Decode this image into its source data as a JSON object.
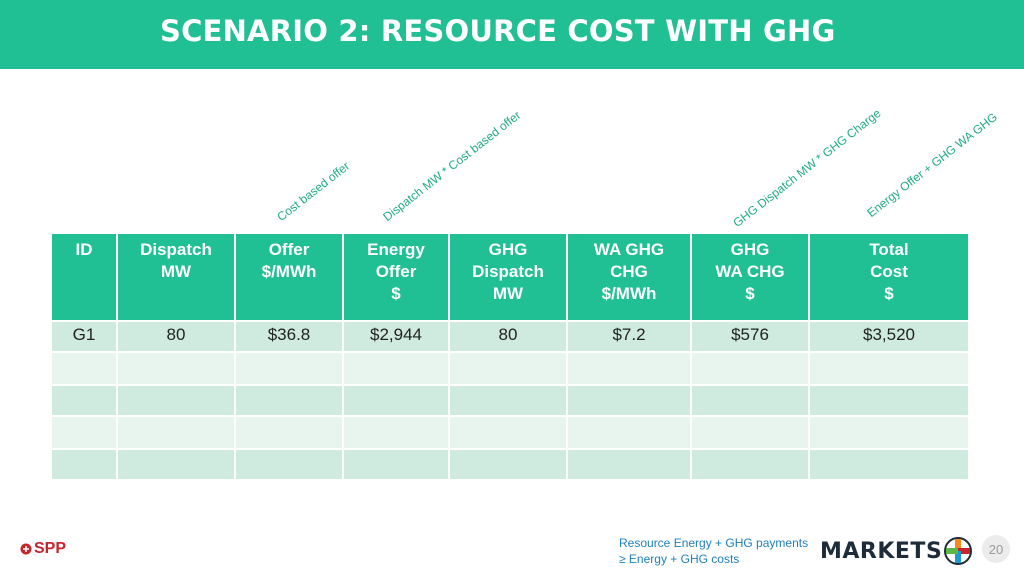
{
  "title": "SCENARIO 2:  RESOURCE COST WITH GHG",
  "annotations": {
    "offer": "Cost based offer",
    "energy_offer": "Dispatch MW * Cost based offer",
    "ghg_wa": "GHG Dispatch MW * GHG Charge",
    "total": "Energy Offer + GHG WA GHG"
  },
  "table": {
    "headers": [
      "ID",
      "Dispatch\nMW",
      "Offer\n$/MWh",
      "Energy\nOffer\n$",
      "GHG\nDispatch\nMW",
      "WA GHG\nCHG\n$/MWh",
      "GHG\nWA CHG\n$",
      "Total\nCost\n$"
    ],
    "rows": [
      [
        "G1",
        "80",
        "$36.8",
        "$2,944",
        "80",
        "$7.2",
        "$576",
        "$3,520"
      ],
      [
        "",
        "",
        "",
        "",
        "",
        "",
        "",
        ""
      ],
      [
        "",
        "",
        "",
        "",
        "",
        "",
        "",
        ""
      ],
      [
        "",
        "",
        "",
        "",
        "",
        "",
        "",
        ""
      ],
      [
        "",
        "",
        "",
        "",
        "",
        "",
        "",
        ""
      ]
    ]
  },
  "footer": {
    "note_line1": "Resource Energy + GHG payments",
    "note_line2": "≥ Energy + GHG costs",
    "spp_logo": "SPP",
    "markets_logo": "MARKETS",
    "page_number": "20"
  },
  "colors": {
    "accent": "#20bf94",
    "row_dark": "#cfeadf",
    "row_light": "#e8f5ef",
    "footer_note": "#1f7fbf",
    "spp_red": "#c4262e"
  },
  "icons": {
    "spp": "spp-logo-icon",
    "markets_plus": "markets-plus-icon"
  }
}
